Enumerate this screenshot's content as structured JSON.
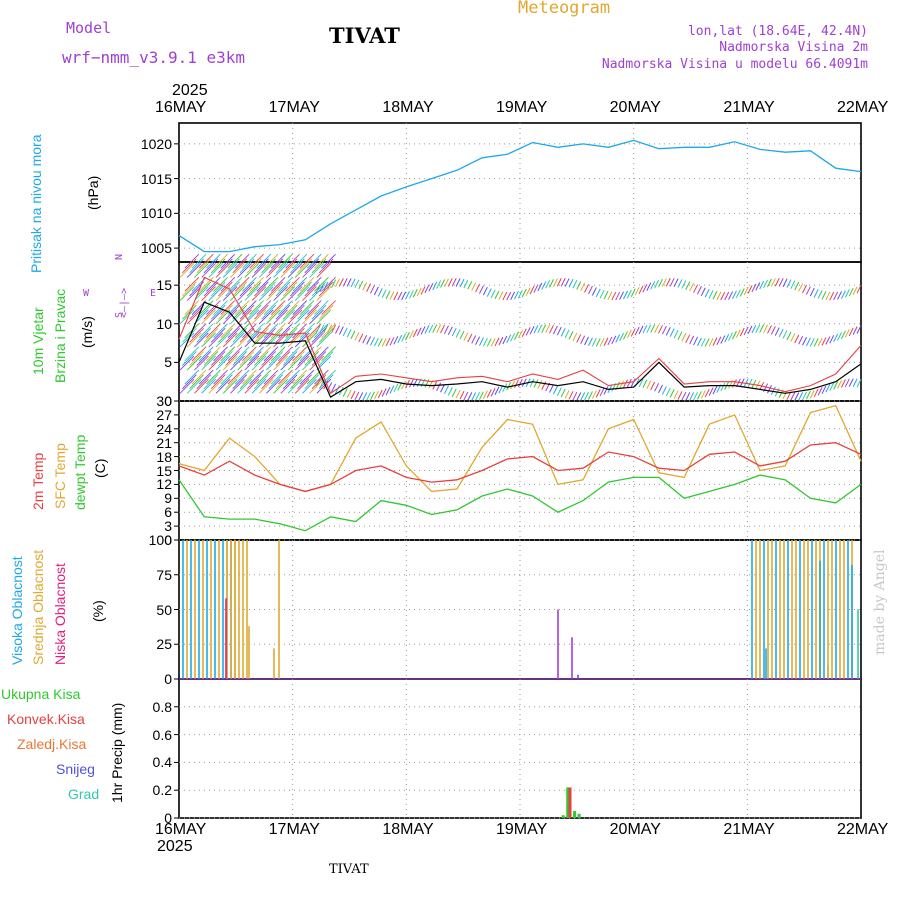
{
  "header": {
    "model_label": "Model",
    "model_name": "wrf−nmm_v3.9.1  e3km",
    "station": "TIVAT",
    "meteogram": "Meteogram",
    "lonlat": "lon,lat (18.64E, 42.4N)",
    "elevation": "Nadmorska Visina 2m",
    "model_elevation": "Nadmorska Visina u modelu 66.4091m",
    "footer_station": "TIVAT",
    "credit": "made by Angel"
  },
  "colors": {
    "pressure": "#1ea8e8",
    "temp2m": "#e84040",
    "sfc": "#e0a830",
    "dew": "#30c830",
    "wind_speed": "#000000",
    "gust": "#e84040",
    "high_cloud": "#1ea8e8",
    "mid_cloud": "#e0a830",
    "low_cloud": "#e02080",
    "purple": "#a040d0"
  },
  "chart_data": {
    "type": "meteogram",
    "x_axis": {
      "top_year": "2025",
      "bottom_year": "2025",
      "days": [
        "16MAY",
        "17MAY",
        "18MAY",
        "19MAY",
        "20MAY",
        "21MAY",
        "22MAY"
      ]
    },
    "panels": {
      "pressure": {
        "labels": [
          "Pritisak  na  nivou  mora",
          "(hPa)"
        ],
        "ylim": [
          1003,
          1023
        ],
        "ticks": [
          "1005",
          "1010",
          "1015",
          "1020"
        ],
        "tick_values": [
          1005,
          1010,
          1015,
          1020
        ],
        "series": [
          {
            "name": "Pritisak",
            "values": [
              1006.8,
              1004.5,
              1004.5,
              1005.2,
              1005.5,
              1006.2,
              1008.5,
              1010.5,
              1012.5,
              1013.8,
              1015.0,
              1016.2,
              1018.0,
              1018.5,
              1020.2,
              1019.5,
              1020.0,
              1019.5,
              1020.5,
              1019.3,
              1019.5,
              1019.5,
              1020.3,
              1019.2,
              1018.8,
              1019.0,
              1016.5,
              1016.0
            ]
          }
        ]
      },
      "wind": {
        "labels": [
          "10m  Vjetar",
          "Brzina  i  Pravac",
          "(m/s)"
        ],
        "compass": [
          "N",
          "<—|—>",
          "S",
          "W",
          "E"
        ],
        "ylim": [
          0,
          18
        ],
        "ticks": [
          "0",
          "5",
          "10",
          "15"
        ],
        "tick_values": [
          0,
          5,
          10,
          15
        ],
        "series": [
          {
            "name": "Brzina",
            "values": [
              5.0,
              12.8,
              11.5,
              7.5,
              7.5,
              7.8,
              0.5,
              2.5,
              2.8,
              2.2,
              2.0,
              2.2,
              2.5,
              1.8,
              2.5,
              2.0,
              2.5,
              1.5,
              1.8,
              5.0,
              1.8,
              2.0,
              2.0,
              1.5,
              1.0,
              1.5,
              2.5,
              4.8
            ]
          },
          {
            "name": "Udari",
            "values": [
              8.0,
              16.0,
              14.5,
              9.0,
              8.5,
              8.8,
              1.0,
              3.2,
              3.5,
              3.0,
              2.5,
              3.0,
              3.2,
              2.5,
              3.5,
              2.8,
              4.0,
              2.0,
              2.5,
              5.5,
              2.2,
              2.5,
              2.5,
              2.0,
              1.2,
              2.0,
              3.5,
              7.2
            ]
          }
        ]
      },
      "temperature": {
        "labels": [
          "2m  Temp",
          "SFC  Temp",
          "dewpt  Temp",
          "(C)"
        ],
        "ylim": [
          0,
          30
        ],
        "ticks": [
          "0",
          "3",
          "6",
          "9",
          "12",
          "15",
          "18",
          "21",
          "24",
          "27",
          "30"
        ],
        "tick_values": [
          0,
          3,
          6,
          9,
          12,
          15,
          18,
          21,
          24,
          27,
          30
        ],
        "series": [
          {
            "name": "2m Temp",
            "values": [
              16,
              14,
              17,
              14,
              12,
              10.5,
              12,
              15,
              16,
              13.5,
              12.5,
              13,
              15,
              17.5,
              18,
              15,
              15.5,
              19,
              18,
              15.5,
              15,
              18.5,
              19,
              16,
              17,
              20.5,
              21,
              18.5
            ]
          },
          {
            "name": "SFC Temp",
            "values": [
              16.5,
              15,
              22,
              18,
              12,
              10.5,
              12,
              22,
              25.5,
              16,
              10.5,
              11,
              20,
              26,
              25,
              12,
              13,
              24,
              26,
              14.5,
              13.5,
              25,
              27,
              15,
              16,
              27.5,
              29,
              17
            ]
          },
          {
            "name": "dewpt Temp",
            "values": [
              13,
              5,
              4.5,
              4.5,
              3.5,
              2,
              5,
              4,
              8.5,
              7.5,
              5.5,
              6.5,
              9.5,
              11,
              9.5,
              6,
              8.5,
              12.5,
              13.5,
              13.5,
              9,
              10.5,
              12,
              14,
              13,
              9,
              8,
              12
            ]
          }
        ]
      },
      "clouds": {
        "labels": [
          "Visoka  Oblacnost",
          "Srednja  Oblacnost",
          "Niska  Oblacnost",
          "(%)"
        ],
        "ylim": [
          0,
          100
        ],
        "ticks": [
          "0",
          "25",
          "50",
          "75",
          "100"
        ],
        "tick_values": [
          0,
          25,
          50,
          75,
          100
        ]
      },
      "precip": {
        "labels": [
          "Ukupna  Kisa",
          "Konvek.Kisa",
          "Zaledj.Kisa",
          "Snijeg",
          "Grad",
          "1hr  Precip  (mm)"
        ],
        "ylim": [
          0,
          1.0
        ],
        "ticks": [
          "0",
          "0.2",
          "0.4",
          "0.6",
          "0.8"
        ],
        "tick_values": [
          0,
          0.2,
          0.4,
          0.6,
          0.8
        ],
        "bars": [
          {
            "name": "Ukupna Kisa",
            "day": 3.38,
            "value": 0.02
          },
          {
            "name": "Ukupna Kisa",
            "day": 3.42,
            "value": 0.22
          },
          {
            "name": "Konvek.Kisa",
            "day": 3.44,
            "value": 0.22
          },
          {
            "name": "Ukupna Kisa",
            "day": 3.48,
            "value": 0.05
          },
          {
            "name": "Ukupna Kisa",
            "day": 3.52,
            "value": 0.03
          }
        ]
      }
    }
  }
}
